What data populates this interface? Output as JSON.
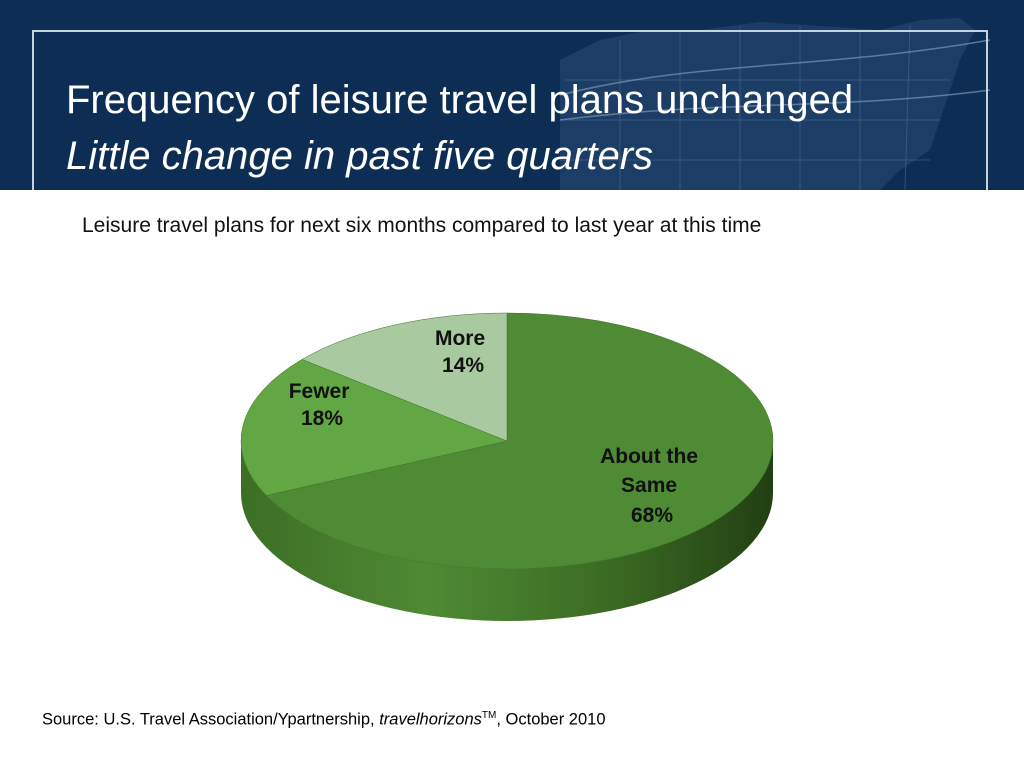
{
  "header": {
    "title": "Frequency of leisure travel plans unchanged",
    "subtitle": "Little change in past five quarters",
    "background_color": "#0d2d55"
  },
  "chart_data": {
    "type": "pie",
    "title": "Leisure travel plans for next six months compared to last year at this time",
    "slices": [
      {
        "label": "About the Same",
        "value": 68,
        "label_text": "68%",
        "color": "#4f8a34"
      },
      {
        "label": "Fewer",
        "value": 18,
        "label_text": "18%",
        "color": "#62a744"
      },
      {
        "label": "More",
        "value": 14,
        "label_text": "14%",
        "color": "#a9c9a0"
      }
    ],
    "three_d": true
  },
  "footer": {
    "source_prefix": "Source:  U.S. Travel Association/Ypartnership, ",
    "source_italic": "travelhorizons",
    "source_sup": "TM",
    "source_suffix": ", October 2010"
  }
}
